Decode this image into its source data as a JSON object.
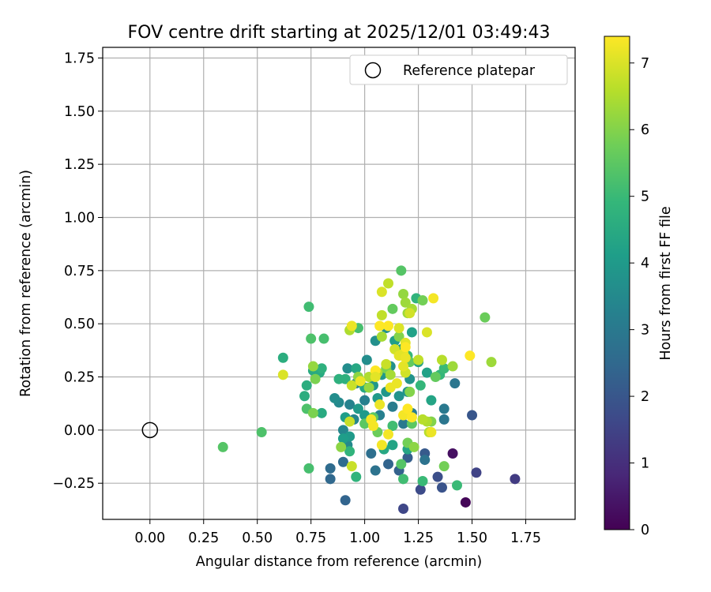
{
  "chart_data": {
    "type": "scatter",
    "title": "FOV centre drift starting at 2025/12/01 03:49:43",
    "xlabel": "Angular distance from reference (arcmin)",
    "ylabel": "Rotation from reference (arcmin)",
    "xlim": [
      -0.22,
      1.98
    ],
    "ylim": [
      -0.42,
      1.8
    ],
    "x_ticks": [
      0.0,
      0.25,
      0.5,
      0.75,
      1.0,
      1.25,
      1.5,
      1.75
    ],
    "x_tick_labels": [
      "0.00",
      "0.25",
      "0.50",
      "0.75",
      "1.00",
      "1.25",
      "1.50",
      "1.75"
    ],
    "y_ticks": [
      -0.25,
      0.0,
      0.25,
      0.5,
      0.75,
      1.0,
      1.25,
      1.5,
      1.75
    ],
    "y_tick_labels": [
      "−0.25",
      "0.00",
      "0.25",
      "0.50",
      "0.75",
      "1.00",
      "1.25",
      "1.50",
      "1.75"
    ],
    "grid": true,
    "legend_position": "top-right",
    "legend": [
      {
        "label": "Reference platepar",
        "marker": "hollow-circle",
        "color": "#000000"
      }
    ],
    "reference_point": {
      "x": 0.0,
      "y": 0.0
    },
    "colorbar": {
      "label": "Hours from first FF file",
      "range": [
        0,
        7.4
      ],
      "ticks": [
        0,
        1,
        2,
        3,
        4,
        5,
        6,
        7
      ],
      "tick_labels": [
        "0",
        "1",
        "2",
        "3",
        "4",
        "5",
        "6",
        "7"
      ],
      "colormap": "viridis",
      "colormap_stops": [
        "#440154",
        "#482878",
        "#3e4989",
        "#31688e",
        "#26828e",
        "#1f9e89",
        "#35b779",
        "#6ece58",
        "#b5de2b",
        "#fde725"
      ]
    },
    "series": [
      {
        "points": [
          {
            "x": 1.47,
            "y": -0.34,
            "c": 0.1
          },
          {
            "x": 1.41,
            "y": -0.11,
            "c": 0.3
          },
          {
            "x": 1.7,
            "y": -0.23,
            "c": 1.3
          },
          {
            "x": 1.52,
            "y": -0.2,
            "c": 1.5
          },
          {
            "x": 1.18,
            "y": -0.37,
            "c": 1.6
          },
          {
            "x": 1.26,
            "y": -0.28,
            "c": 1.7
          },
          {
            "x": 1.34,
            "y": -0.22,
            "c": 1.8
          },
          {
            "x": 1.36,
            "y": -0.27,
            "c": 1.9
          },
          {
            "x": 1.5,
            "y": 0.07,
            "c": 2.0
          },
          {
            "x": 1.28,
            "y": -0.11,
            "c": 2.1
          },
          {
            "x": 1.2,
            "y": -0.13,
            "c": 2.2
          },
          {
            "x": 1.16,
            "y": -0.19,
            "c": 2.3
          },
          {
            "x": 1.11,
            "y": -0.16,
            "c": 2.4
          },
          {
            "x": 0.91,
            "y": -0.33,
            "c": 2.4
          },
          {
            "x": 0.84,
            "y": -0.23,
            "c": 2.5
          },
          {
            "x": 0.84,
            "y": -0.18,
            "c": 2.6
          },
          {
            "x": 0.9,
            "y": -0.15,
            "c": 2.6
          },
          {
            "x": 1.03,
            "y": -0.11,
            "c": 2.7
          },
          {
            "x": 1.05,
            "y": -0.19,
            "c": 2.8
          },
          {
            "x": 1.28,
            "y": -0.14,
            "c": 2.8
          },
          {
            "x": 1.42,
            "y": 0.22,
            "c": 2.9
          },
          {
            "x": 1.37,
            "y": 0.05,
            "c": 2.9
          },
          {
            "x": 1.37,
            "y": 0.1,
            "c": 3.0
          },
          {
            "x": 1.18,
            "y": 0.03,
            "c": 3.0
          },
          {
            "x": 1.22,
            "y": 0.08,
            "c": 3.1
          },
          {
            "x": 1.13,
            "y": 0.11,
            "c": 3.1
          },
          {
            "x": 1.07,
            "y": 0.07,
            "c": 3.2
          },
          {
            "x": 1.0,
            "y": 0.14,
            "c": 3.2
          },
          {
            "x": 0.96,
            "y": 0.22,
            "c": 3.3
          },
          {
            "x": 0.93,
            "y": 0.12,
            "c": 3.3
          },
          {
            "x": 0.95,
            "y": 0.05,
            "c": 3.4
          },
          {
            "x": 0.9,
            "y": 0.0,
            "c": 3.4
          },
          {
            "x": 0.92,
            "y": -0.07,
            "c": 3.5
          },
          {
            "x": 0.88,
            "y": 0.13,
            "c": 3.5
          },
          {
            "x": 0.86,
            "y": 0.15,
            "c": 3.6
          },
          {
            "x": 0.92,
            "y": 0.29,
            "c": 3.6
          },
          {
            "x": 1.01,
            "y": 0.33,
            "c": 3.6
          },
          {
            "x": 1.05,
            "y": 0.42,
            "c": 3.7
          },
          {
            "x": 1.1,
            "y": 0.48,
            "c": 3.7
          },
          {
            "x": 1.12,
            "y": 0.3,
            "c": 3.7
          },
          {
            "x": 1.21,
            "y": 0.24,
            "c": 3.8
          },
          {
            "x": 1.2,
            "y": 0.18,
            "c": 3.8
          },
          {
            "x": 1.16,
            "y": 0.16,
            "c": 3.8
          },
          {
            "x": 1.08,
            "y": 0.26,
            "c": 3.9
          },
          {
            "x": 1.1,
            "y": 0.18,
            "c": 3.9
          },
          {
            "x": 1.04,
            "y": 0.21,
            "c": 3.9
          },
          {
            "x": 1.06,
            "y": 0.15,
            "c": 4.0
          },
          {
            "x": 1.0,
            "y": 0.07,
            "c": 4.0
          },
          {
            "x": 0.97,
            "y": 0.1,
            "c": 4.0
          },
          {
            "x": 0.93,
            "y": -0.03,
            "c": 4.0
          },
          {
            "x": 0.9,
            "y": -0.04,
            "c": 4.1
          },
          {
            "x": 0.91,
            "y": 0.06,
            "c": 4.1
          },
          {
            "x": 1.17,
            "y": 0.38,
            "c": 4.1
          },
          {
            "x": 1.14,
            "y": 0.42,
            "c": 4.1
          },
          {
            "x": 1.22,
            "y": 0.46,
            "c": 4.2
          },
          {
            "x": 1.25,
            "y": 0.32,
            "c": 4.2
          },
          {
            "x": 1.29,
            "y": 0.27,
            "c": 4.2
          },
          {
            "x": 1.31,
            "y": 0.14,
            "c": 4.3
          },
          {
            "x": 1.2,
            "y": -0.09,
            "c": 4.3
          },
          {
            "x": 1.13,
            "y": -0.07,
            "c": 4.3
          },
          {
            "x": 1.09,
            "y": -0.09,
            "c": 4.4
          },
          {
            "x": 1.0,
            "y": 0.2,
            "c": 4.4
          },
          {
            "x": 0.96,
            "y": 0.29,
            "c": 4.4
          },
          {
            "x": 0.8,
            "y": 0.08,
            "c": 4.5
          },
          {
            "x": 0.76,
            "y": 0.28,
            "c": 4.5
          },
          {
            "x": 0.79,
            "y": 0.27,
            "c": 4.5
          },
          {
            "x": 0.72,
            "y": 0.16,
            "c": 4.6
          },
          {
            "x": 0.73,
            "y": 0.21,
            "c": 4.6
          },
          {
            "x": 0.62,
            "y": 0.34,
            "c": 4.6
          },
          {
            "x": 0.8,
            "y": 0.29,
            "c": 4.7
          },
          {
            "x": 0.88,
            "y": 0.24,
            "c": 4.7
          },
          {
            "x": 0.91,
            "y": 0.24,
            "c": 4.7
          },
          {
            "x": 0.93,
            "y": -0.1,
            "c": 4.8
          },
          {
            "x": 0.96,
            "y": -0.22,
            "c": 4.8
          },
          {
            "x": 1.24,
            "y": 0.62,
            "c": 4.8
          },
          {
            "x": 1.2,
            "y": 0.35,
            "c": 4.9
          },
          {
            "x": 1.26,
            "y": 0.21,
            "c": 4.9
          },
          {
            "x": 1.35,
            "y": 0.26,
            "c": 4.9
          },
          {
            "x": 1.37,
            "y": 0.29,
            "c": 5.0
          },
          {
            "x": 1.27,
            "y": -0.24,
            "c": 5.0
          },
          {
            "x": 1.43,
            "y": -0.26,
            "c": 5.0
          },
          {
            "x": 1.18,
            "y": -0.23,
            "c": 5.1
          },
          {
            "x": 1.13,
            "y": 0.02,
            "c": 5.1
          },
          {
            "x": 0.74,
            "y": 0.58,
            "c": 5.1
          },
          {
            "x": 0.97,
            "y": 0.48,
            "c": 5.2
          },
          {
            "x": 0.81,
            "y": 0.43,
            "c": 5.2
          },
          {
            "x": 0.74,
            "y": -0.18,
            "c": 5.2
          },
          {
            "x": 0.75,
            "y": 0.43,
            "c": 5.3
          },
          {
            "x": 0.73,
            "y": 0.1,
            "c": 5.3
          },
          {
            "x": 0.52,
            "y": -0.01,
            "c": 5.3
          },
          {
            "x": 0.34,
            "y": -0.08,
            "c": 5.4
          },
          {
            "x": 1.17,
            "y": 0.75,
            "c": 5.4
          },
          {
            "x": 1.17,
            "y": -0.16,
            "c": 5.4
          },
          {
            "x": 1.0,
            "y": 0.03,
            "c": 5.5
          },
          {
            "x": 1.04,
            "y": 0.06,
            "c": 5.5
          },
          {
            "x": 1.22,
            "y": 0.03,
            "c": 5.5
          },
          {
            "x": 1.33,
            "y": 0.25,
            "c": 5.6
          },
          {
            "x": 1.21,
            "y": 0.32,
            "c": 5.6
          },
          {
            "x": 1.13,
            "y": 0.57,
            "c": 5.6
          },
          {
            "x": 1.06,
            "y": -0.01,
            "c": 5.7
          },
          {
            "x": 1.56,
            "y": 0.53,
            "c": 5.7
          },
          {
            "x": 1.27,
            "y": 0.61,
            "c": 5.8
          },
          {
            "x": 1.37,
            "y": -0.17,
            "c": 5.8
          },
          {
            "x": 1.2,
            "y": -0.06,
            "c": 5.8
          },
          {
            "x": 0.76,
            "y": 0.08,
            "c": 5.9
          },
          {
            "x": 0.77,
            "y": 0.24,
            "c": 5.9
          },
          {
            "x": 1.1,
            "y": 0.29,
            "c": 5.9
          },
          {
            "x": 1.31,
            "y": 0.04,
            "c": 6.0
          },
          {
            "x": 1.21,
            "y": 0.18,
            "c": 6.0
          },
          {
            "x": 1.16,
            "y": 0.44,
            "c": 6.0
          },
          {
            "x": 0.97,
            "y": 0.25,
            "c": 6.1
          },
          {
            "x": 0.89,
            "y": -0.08,
            "c": 6.1
          },
          {
            "x": 1.23,
            "y": -0.08,
            "c": 6.1
          },
          {
            "x": 1.18,
            "y": 0.64,
            "c": 6.2
          },
          {
            "x": 1.02,
            "y": 0.2,
            "c": 6.2
          },
          {
            "x": 0.76,
            "y": 0.3,
            "c": 6.2
          },
          {
            "x": 1.59,
            "y": 0.32,
            "c": 6.3
          },
          {
            "x": 1.41,
            "y": 0.3,
            "c": 6.3
          },
          {
            "x": 1.2,
            "y": 0.55,
            "c": 6.3
          },
          {
            "x": 1.19,
            "y": 0.6,
            "c": 6.3
          },
          {
            "x": 1.12,
            "y": 0.26,
            "c": 6.4
          },
          {
            "x": 1.08,
            "y": 0.44,
            "c": 6.4
          },
          {
            "x": 1.22,
            "y": 0.57,
            "c": 6.4
          },
          {
            "x": 0.93,
            "y": 0.47,
            "c": 6.5
          },
          {
            "x": 1.06,
            "y": 0.27,
            "c": 6.5
          },
          {
            "x": 1.02,
            "y": 0.25,
            "c": 6.5
          },
          {
            "x": 1.29,
            "y": 0.04,
            "c": 6.5
          },
          {
            "x": 1.3,
            "y": -0.01,
            "c": 6.6
          },
          {
            "x": 1.27,
            "y": 0.05,
            "c": 6.6
          },
          {
            "x": 1.36,
            "y": 0.33,
            "c": 6.6
          },
          {
            "x": 1.25,
            "y": 0.33,
            "c": 6.7
          },
          {
            "x": 1.11,
            "y": 0.69,
            "c": 6.7
          },
          {
            "x": 1.08,
            "y": 0.54,
            "c": 6.7
          },
          {
            "x": 0.94,
            "y": 0.21,
            "c": 6.8
          },
          {
            "x": 0.94,
            "y": -0.17,
            "c": 6.8
          },
          {
            "x": 0.93,
            "y": 0.04,
            "c": 6.8
          },
          {
            "x": 1.1,
            "y": 0.31,
            "c": 6.8
          },
          {
            "x": 1.14,
            "y": 0.38,
            "c": 6.9
          },
          {
            "x": 1.21,
            "y": 0.55,
            "c": 6.9
          },
          {
            "x": 1.19,
            "y": 0.27,
            "c": 6.9
          },
          {
            "x": 0.62,
            "y": 0.26,
            "c": 7.0
          },
          {
            "x": 1.08,
            "y": 0.65,
            "c": 7.0
          },
          {
            "x": 1.16,
            "y": 0.48,
            "c": 7.0
          },
          {
            "x": 1.29,
            "y": 0.46,
            "c": 7.0
          },
          {
            "x": 1.16,
            "y": 0.35,
            "c": 7.1
          },
          {
            "x": 1.19,
            "y": 0.41,
            "c": 7.1
          },
          {
            "x": 1.18,
            "y": 0.36,
            "c": 7.1
          },
          {
            "x": 1.18,
            "y": 0.3,
            "c": 7.1
          },
          {
            "x": 1.19,
            "y": 0.34,
            "c": 7.2
          },
          {
            "x": 1.15,
            "y": 0.22,
            "c": 7.2
          },
          {
            "x": 1.12,
            "y": 0.2,
            "c": 7.2
          },
          {
            "x": 1.07,
            "y": 0.12,
            "c": 7.2
          },
          {
            "x": 1.03,
            "y": 0.05,
            "c": 7.3
          },
          {
            "x": 1.04,
            "y": 0.02,
            "c": 7.3
          },
          {
            "x": 1.08,
            "y": -0.07,
            "c": 7.3
          },
          {
            "x": 1.11,
            "y": -0.02,
            "c": 7.3
          },
          {
            "x": 1.18,
            "y": 0.07,
            "c": 7.3
          },
          {
            "x": 1.2,
            "y": 0.1,
            "c": 7.4
          },
          {
            "x": 1.22,
            "y": 0.06,
            "c": 7.4
          },
          {
            "x": 1.05,
            "y": 0.28,
            "c": 7.4
          },
          {
            "x": 1.07,
            "y": 0.49,
            "c": 7.4
          },
          {
            "x": 1.11,
            "y": 0.49,
            "c": 7.4
          },
          {
            "x": 1.19,
            "y": 0.39,
            "c": 7.4
          },
          {
            "x": 1.32,
            "y": 0.62,
            "c": 7.3
          },
          {
            "x": 1.49,
            "y": 0.35,
            "c": 7.4
          },
          {
            "x": 0.94,
            "y": 0.49,
            "c": 7.2
          },
          {
            "x": 0.98,
            "y": 0.23,
            "c": 7.2
          },
          {
            "x": 1.31,
            "y": -0.01,
            "c": 7.2
          },
          {
            "x": 1.05,
            "y": 0.25,
            "c": 7.1
          }
        ]
      }
    ]
  }
}
